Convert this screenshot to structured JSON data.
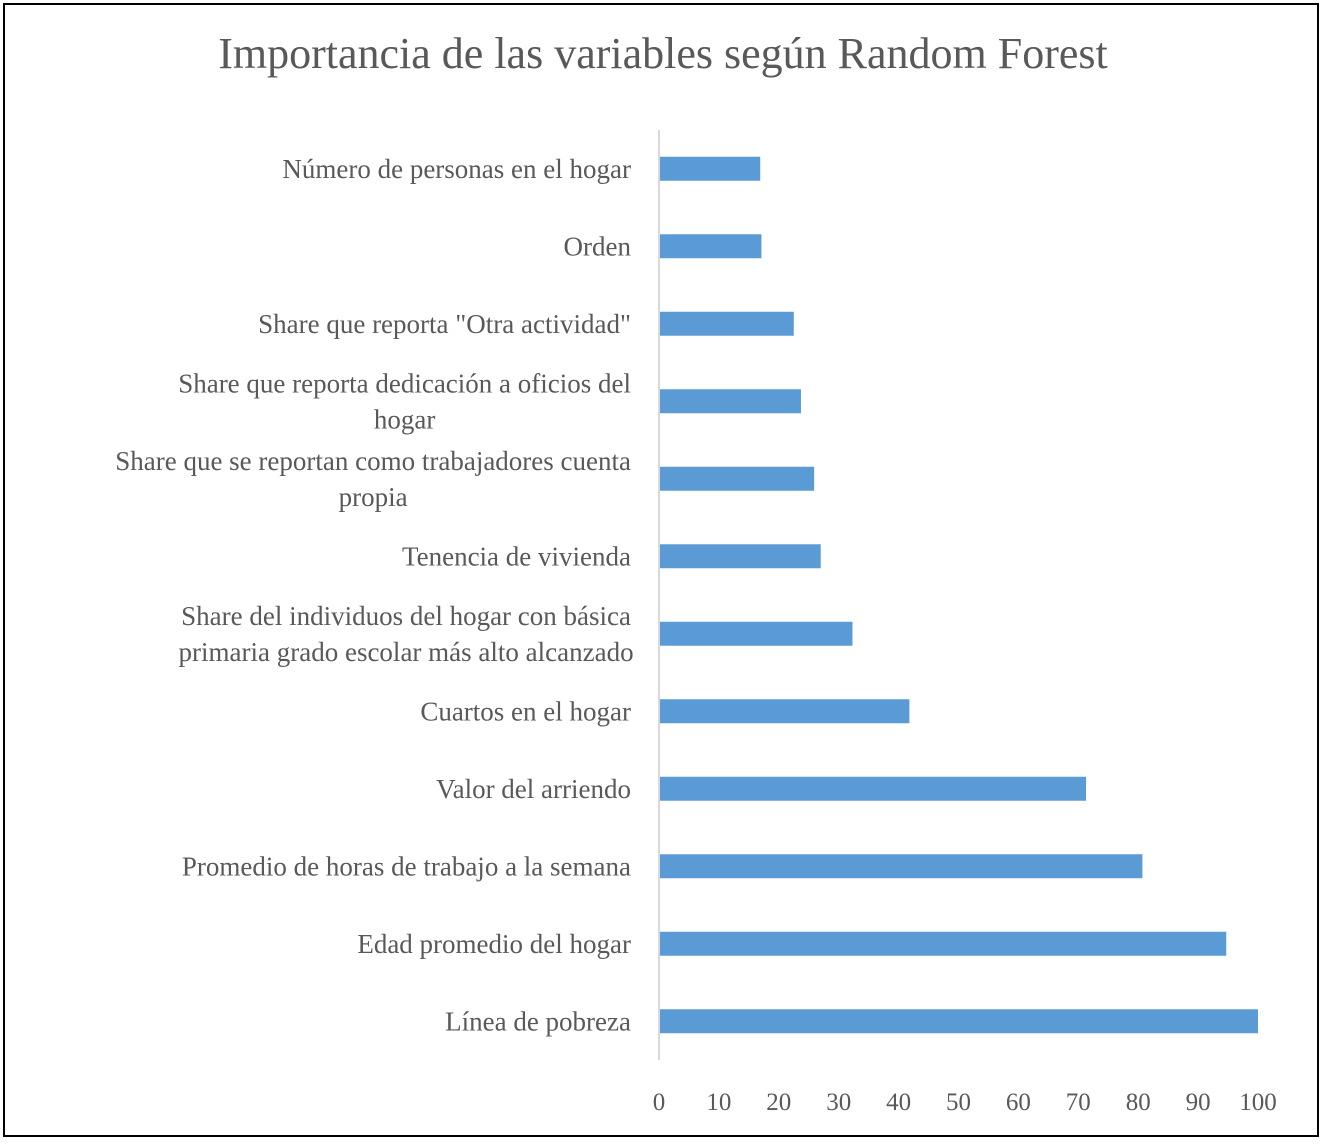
{
  "chart_data": {
    "type": "bar",
    "orientation": "horizontal",
    "title": "Importancia de las variables según Random Forest",
    "xlabel": "",
    "ylabel": "",
    "categories": [
      "Línea de pobreza",
      "Edad promedio del hogar",
      "Promedio de horas de trabajo a la semana",
      "Valor del arriendo",
      "Cuartos en el hogar",
      "Share del individuos del hogar con básica primaria grado escolar más alto alcanzado",
      "Tenencia de vivienda",
      "Share que se reportan como trabajadores cuenta propia",
      "Share  que reporta dedicación a oficios del hogar",
      "Share que reporta \"Otra actividad\"",
      "Orden",
      "Número de personas en el hogar"
    ],
    "category_lines": [
      [
        "Línea de pobreza"
      ],
      [
        "Edad promedio del hogar"
      ],
      [
        "Promedio de horas de trabajo a la semana"
      ],
      [
        "Valor del arriendo"
      ],
      [
        "Cuartos en el hogar"
      ],
      [
        "Share del individuos del hogar con básica",
        "primaria grado escolar más alto alcanzado"
      ],
      [
        "Tenencia de vivienda"
      ],
      [
        "Share que se reportan como trabajadores cuenta",
        "propia"
      ],
      [
        "Share  que reporta dedicación a oficios del",
        "hogar"
      ],
      [
        "Share que reporta \"Otra actividad\""
      ],
      [
        "Orden"
      ],
      [
        "Número de personas en el hogar"
      ]
    ],
    "values": [
      100,
      94.7,
      80.7,
      71.3,
      41.8,
      32.3,
      27.0,
      25.9,
      23.7,
      22.5,
      17.1,
      16.9
    ],
    "xlim": [
      0,
      100
    ],
    "xticks": [
      0,
      10,
      20,
      30,
      40,
      50,
      60,
      70,
      80,
      90,
      100
    ],
    "grid": false,
    "legend": "none",
    "bar_color": "#5B9BD5",
    "text_color": "#595959",
    "axis_color": "#D9D9D9"
  }
}
